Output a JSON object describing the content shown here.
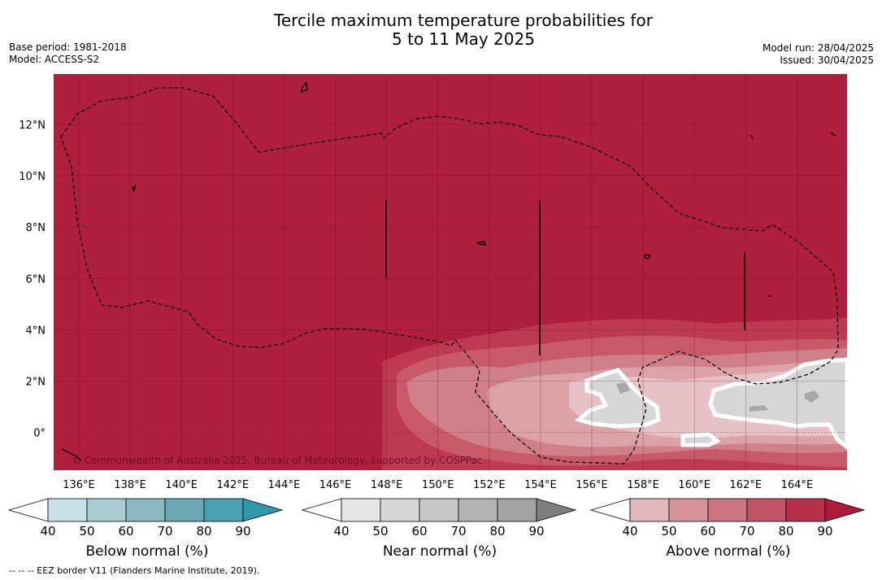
{
  "title_line1": "Tercile maximum temperature probabilities for",
  "title_line2": "5 to 11 May 2025",
  "base_period": "Base period: 1981-2018",
  "model": "Model: ACCESS-S2",
  "model_run": "Model run: 28/04/2025",
  "issued": "Issued: 30/04/2025",
  "copyright": "© Commonwealth of Australia 2025, Bureau of Meteorology, supported by COSPPac",
  "footnote": "--  --  -- EEZ border V11 (Flanders Marine Institute, 2019).",
  "map": {
    "lon_labels": [
      "136°E",
      "138°E",
      "140°E",
      "142°E",
      "144°E",
      "146°E",
      "148°E",
      "150°E",
      "152°E",
      "154°E",
      "156°E",
      "158°E",
      "160°E",
      "162°E",
      "164°E"
    ],
    "lat_labels": [
      "12°N",
      "10°N",
      "8°N",
      "6°N",
      "4°N",
      "2°N",
      "0°"
    ],
    "colors": {
      "above_90": "#b01f3b",
      "above_80": "#bd3a50",
      "above_70": "#c75a66",
      "above_60": "#d08088",
      "above_50": "#dba3a8",
      "above_40": "#e6c2c6",
      "near_50": "#d6d6d6",
      "near_60": "#c8c8c8",
      "near_70": "#a8a8a8",
      "white": "#ffffff"
    }
  },
  "legends": [
    {
      "caption": "Below normal (%)",
      "ticks": [
        "40",
        "50",
        "60",
        "70",
        "80",
        "90"
      ],
      "colors": [
        "#ffffff",
        "#c9e1e8",
        "#a9cbd3",
        "#8bb8c2",
        "#6aa8b6",
        "#49a0b0",
        "#2f97a8"
      ]
    },
    {
      "caption": "Near normal (%)",
      "ticks": [
        "40",
        "50",
        "60",
        "70",
        "80",
        "90"
      ],
      "colors": [
        "#ffffff",
        "#e6e6e6",
        "#d6d6d6",
        "#c6c6c6",
        "#b3b3b3",
        "#a3a3a3",
        "#7f7f7f"
      ]
    },
    {
      "caption": "Above normal (%)",
      "ticks": [
        "40",
        "50",
        "60",
        "70",
        "80",
        "90"
      ],
      "colors": [
        "#ffffff",
        "#e2b8bd",
        "#d8949b",
        "#cc747f",
        "#c25465",
        "#b83149",
        "#ad1a3a"
      ]
    }
  ]
}
